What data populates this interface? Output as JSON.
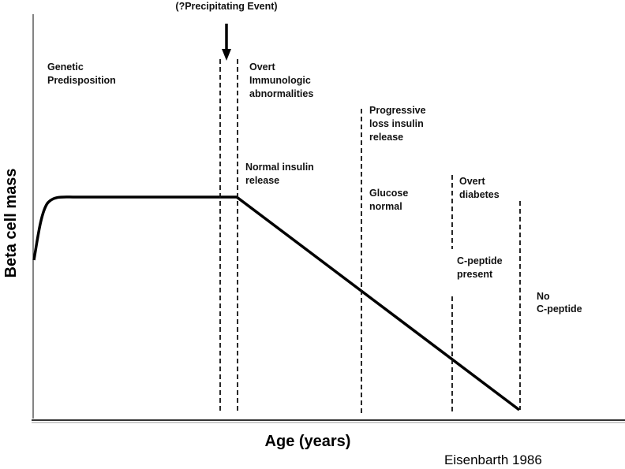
{
  "header": {
    "event": "(?Precipitating Event)"
  },
  "axes": {
    "y_label": "Beta cell mass",
    "x_label": "Age (years)"
  },
  "source": "Eisenbarth 1986",
  "stages": [
    {
      "lines": [
        "Genetic",
        "Predisposition"
      ]
    },
    {
      "lines": [
        "Overt",
        "Immunologic",
        "abnormalities"
      ]
    },
    {
      "lines": [
        "Normal insulin",
        "release"
      ]
    },
    {
      "lines": [
        "Progressive",
        "loss insulin",
        "release"
      ]
    },
    {
      "lines": [
        "Glucose",
        "normal"
      ]
    },
    {
      "lines": [
        "Overt",
        "diabetes"
      ]
    },
    {
      "lines": [
        "C-peptide",
        "present"
      ]
    },
    {
      "lines": [
        "No",
        "C-peptide"
      ]
    }
  ]
}
